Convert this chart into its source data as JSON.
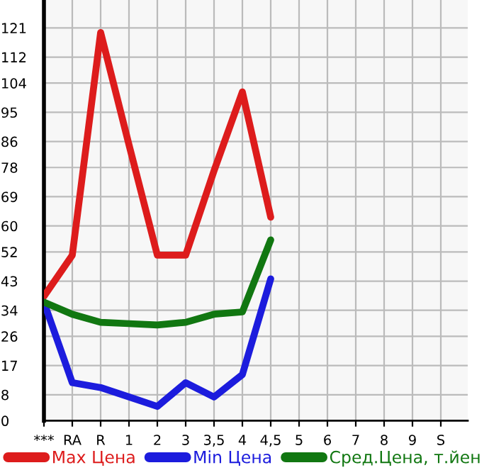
{
  "chart_data": {
    "type": "line",
    "categories": [
      "***",
      "RA",
      "R",
      "1",
      "2",
      "3",
      "3,5",
      "4",
      "4,5",
      "5",
      "6",
      "7",
      "8",
      "9",
      "S"
    ],
    "series": [
      {
        "name": "Max Цена",
        "color": "#dd1c1c",
        "values": [
          38.3,
          51,
          119.6,
          85,
          51,
          51,
          77,
          101.3,
          62.7,
          null,
          null,
          null,
          null,
          null,
          null
        ]
      },
      {
        "name": "Min Цена",
        "color": "#1c1cdd",
        "values": [
          36.5,
          11.7,
          10.2,
          7.3,
          4.4,
          11.7,
          7.3,
          14.2,
          43.7,
          null,
          null,
          null,
          null,
          null,
          null
        ]
      },
      {
        "name": "Сред.Цена, т.йен",
        "color": "#117711",
        "values": [
          36.5,
          32.8,
          30.3,
          29.9,
          29.5,
          30.3,
          32.8,
          33.5,
          55.7,
          null,
          null,
          null,
          null,
          null,
          null
        ]
      }
    ],
    "ylim": [
      0,
      129.6
    ],
    "yticks": [
      0,
      8,
      17,
      26,
      34,
      43,
      52,
      60,
      69,
      78,
      86,
      95,
      104,
      112,
      121
    ],
    "grid": true,
    "legend": "bottom",
    "marker": "none",
    "line_style": "solid"
  }
}
